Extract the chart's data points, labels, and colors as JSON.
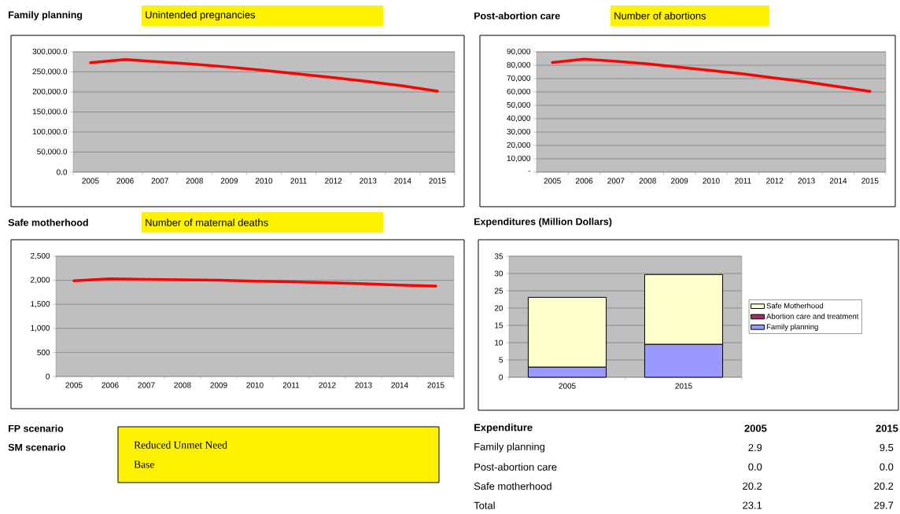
{
  "chart_data": [
    {
      "type": "line",
      "title": "Family planning",
      "subtitle": "Unintended pregnancies",
      "categories": [
        "2005",
        "2006",
        "2007",
        "2008",
        "2009",
        "2010",
        "2011",
        "2012",
        "2013",
        "2014",
        "2015"
      ],
      "series": [
        {
          "color": "#ff0000",
          "values": [
            273000,
            281000,
            275000,
            269000,
            262000,
            254000,
            245000,
            236000,
            226000,
            215000,
            202000
          ]
        }
      ],
      "ylim": [
        0,
        300000
      ],
      "yticks": [
        {
          "value": 0,
          "label": "0.0"
        },
        {
          "value": 50000,
          "label": "50,000.0"
        },
        {
          "value": 100000,
          "label": "100,000.0"
        },
        {
          "value": 150000,
          "label": "150,000.0"
        },
        {
          "value": 200000,
          "label": "200,000.0"
        },
        {
          "value": 250000,
          "label": "250,000.0"
        },
        {
          "value": 300000,
          "label": "300,000.0"
        }
      ],
      "grid": "y"
    },
    {
      "type": "line",
      "title": "Post-abortion care",
      "subtitle": "Number of abortions",
      "categories": [
        "2005",
        "2006",
        "2007",
        "2008",
        "2009",
        "2010",
        "2011",
        "2012",
        "2013",
        "2014",
        "2015"
      ],
      "series": [
        {
          "color": "#ff0000",
          "values": [
            82000,
            84500,
            83000,
            81000,
            78500,
            76000,
            73500,
            70500,
            67500,
            64000,
            60500
          ]
        }
      ],
      "ylim": [
        0,
        90000
      ],
      "yticks": [
        {
          "value": 0,
          "label": "-"
        },
        {
          "value": 10000,
          "label": "10,000"
        },
        {
          "value": 20000,
          "label": "20,000"
        },
        {
          "value": 30000,
          "label": "30,000"
        },
        {
          "value": 40000,
          "label": "40,000"
        },
        {
          "value": 50000,
          "label": "50,000"
        },
        {
          "value": 60000,
          "label": "60,000"
        },
        {
          "value": 70000,
          "label": "70,000"
        },
        {
          "value": 80000,
          "label": "80,000"
        },
        {
          "value": 90000,
          "label": "90,000"
        }
      ],
      "grid": "y"
    },
    {
      "type": "line",
      "title": "Safe motherhood",
      "subtitle": "Number of maternal deaths",
      "categories": [
        "2005",
        "2006",
        "2007",
        "2008",
        "2009",
        "2010",
        "2011",
        "2012",
        "2013",
        "2014",
        "2015"
      ],
      "series": [
        {
          "color": "#ff0000",
          "values": [
            1990,
            2030,
            2020,
            2010,
            2000,
            1980,
            1970,
            1950,
            1930,
            1900,
            1880
          ]
        }
      ],
      "ylim": [
        0,
        2500
      ],
      "yticks": [
        0,
        500,
        {
          "value": 1000,
          "label": "1,000"
        },
        {
          "value": 1500,
          "label": "1,500"
        },
        {
          "value": 2000,
          "label": "2,000"
        },
        {
          "value": 2500,
          "label": "2,500"
        }
      ],
      "grid": "y"
    },
    {
      "type": "bar",
      "title": "Expenditures (Million Dollars)",
      "categories": [
        "2005",
        "2015"
      ],
      "stacked": true,
      "series": [
        {
          "name": "Family planning",
          "color": "#9999ff",
          "values": [
            2.9,
            9.5
          ]
        },
        {
          "name": "Abortion care and treatment",
          "color": "#993366",
          "values": [
            0.0,
            0.0
          ]
        },
        {
          "name": "Safe Motherhood",
          "color": "#ffffcc",
          "values": [
            20.2,
            20.2
          ]
        }
      ],
      "ylim": [
        0,
        35
      ],
      "yticks": [
        0,
        5,
        10,
        15,
        20,
        25,
        30,
        35
      ],
      "grid": "y",
      "legend": "right"
    },
    {
      "type": "other",
      "annotations": [
        "FP scenario",
        "SM scenario",
        "Reduced Unmet Need",
        "Base"
      ]
    },
    {
      "type": "other",
      "annotations": [
        "Expenditure",
        "2005",
        "2015",
        "Family planning",
        "2.9",
        "9.5",
        "Post-abortion care",
        "0.0",
        "0.0",
        "Safe motherhood",
        "20.2",
        "20.2",
        "Total",
        "23.1",
        "29.7"
      ]
    }
  ]
}
